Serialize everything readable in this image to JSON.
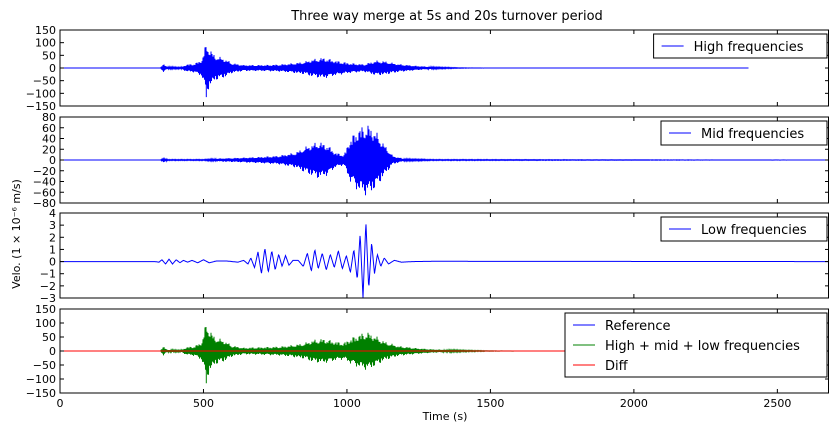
{
  "chart_data": {
    "type": "line",
    "title": "Three way merge at 5s and 20s turnover period",
    "xlabel": "Time (s)",
    "ylabel": "Velo. (1 × 10⁻⁶ m/s)",
    "xlim": [
      0,
      2680
    ],
    "xticks": [
      "0",
      "500",
      "1000",
      "1500",
      "2000",
      "2500"
    ],
    "grid": false,
    "panels": [
      {
        "ylim": [
          -150,
          150
        ],
        "yticks": [
          "150",
          "100",
          "50",
          "0",
          "−50",
          "−100",
          "−150"
        ],
        "legend": "top-right",
        "x_end": 2400,
        "series": [
          {
            "name": "High frequencies",
            "color": "#0000ff",
            "envelope": [
              [
                0,
                0
              ],
              [
                350,
                0
              ],
              [
                360,
                18
              ],
              [
                372,
                5
              ],
              [
                420,
                3
              ],
              [
                440,
                14
              ],
              [
                470,
                18
              ],
              [
                495,
                35
              ],
              [
                510,
                104
              ],
              [
                520,
                80
              ],
              [
                540,
                50
              ],
              [
                570,
                40
              ],
              [
                600,
                20
              ],
              [
                640,
                12
              ],
              [
                700,
                12
              ],
              [
                760,
                14
              ],
              [
                800,
                18
              ],
              [
                850,
                25
              ],
              [
                880,
                35
              ],
              [
                920,
                42
              ],
              [
                960,
                30
              ],
              [
                990,
                24
              ],
              [
                1010,
                20
              ],
              [
                1060,
                15
              ],
              [
                1100,
                30
              ],
              [
                1130,
                28
              ],
              [
                1180,
                16
              ],
              [
                1250,
                8
              ],
              [
                1300,
                4
              ],
              [
                1400,
                1
              ],
              [
                1500,
                0
              ],
              [
                2400,
                0
              ]
            ],
            "troughs": [
              [
                510,
                -115
              ]
            ]
          }
        ]
      },
      {
        "ylim": [
          -80,
          80
        ],
        "yticks": [
          "80",
          "60",
          "40",
          "20",
          "0",
          "−20",
          "−40",
          "−60",
          "−80"
        ],
        "legend": "top-right",
        "series": [
          {
            "name": "Mid frequencies",
            "color": "#0000ff",
            "envelope": [
              [
                0,
                0
              ],
              [
                350,
                0
              ],
              [
                362,
                5
              ],
              [
                375,
                1
              ],
              [
                500,
                1
              ],
              [
                560,
                3
              ],
              [
                620,
                4
              ],
              [
                700,
                6
              ],
              [
                760,
                8
              ],
              [
                820,
                14
              ],
              [
                860,
                26
              ],
              [
                900,
                35
              ],
              [
                930,
                30
              ],
              [
                960,
                14
              ],
              [
                990,
                10
              ],
              [
                1010,
                40
              ],
              [
                1040,
                60
              ],
              [
                1070,
                68
              ],
              [
                1100,
                55
              ],
              [
                1130,
                30
              ],
              [
                1160,
                8
              ],
              [
                1200,
                2
              ],
              [
                1300,
                1
              ],
              [
                2680,
                0
              ]
            ]
          }
        ]
      },
      {
        "ylim": [
          -3,
          4
        ],
        "yticks": [
          "4",
          "3",
          "2",
          "1",
          "0",
          "−1",
          "−2",
          "−3"
        ],
        "legend": "top-right",
        "series": [
          {
            "name": "Low frequencies",
            "color": "#0000ff",
            "wave": [
              [
                0,
                0
              ],
              [
                330,
                0
              ],
              [
                345,
                -0.05
              ],
              [
                355,
                0.15
              ],
              [
                368,
                -0.2
              ],
              [
                380,
                0.2
              ],
              [
                392,
                -0.2
              ],
              [
                405,
                0.15
              ],
              [
                418,
                -0.1
              ],
              [
                430,
                0.1
              ],
              [
                445,
                -0.05
              ],
              [
                460,
                0.1
              ],
              [
                480,
                -0.1
              ],
              [
                500,
                0.15
              ],
              [
                520,
                -0.1
              ],
              [
                545,
                0.05
              ],
              [
                580,
                0.05
              ],
              [
                620,
                -0.05
              ],
              [
                640,
                0.1
              ],
              [
                655,
                -0.2
              ],
              [
                665,
                0.3
              ],
              [
                678,
                -0.5
              ],
              [
                690,
                0.8
              ],
              [
                702,
                -1.0
              ],
              [
                714,
                1.1
              ],
              [
                726,
                -0.9
              ],
              [
                738,
                0.9
              ],
              [
                750,
                -0.7
              ],
              [
                762,
                0.6
              ],
              [
                774,
                -0.4
              ],
              [
                786,
                0.5
              ],
              [
                798,
                -0.3
              ],
              [
                812,
                0.1
              ],
              [
                830,
                0.1
              ],
              [
                848,
                -0.4
              ],
              [
                862,
                0.7
              ],
              [
                876,
                -0.8
              ],
              [
                888,
                1.0
              ],
              [
                900,
                -0.6
              ],
              [
                914,
                0.7
              ],
              [
                928,
                -0.7
              ],
              [
                942,
                0.6
              ],
              [
                956,
                -0.5
              ],
              [
                970,
                0.9
              ],
              [
                984,
                -0.6
              ],
              [
                998,
                0.5
              ],
              [
                1012,
                -0.9
              ],
              [
                1024,
                1.0
              ],
              [
                1036,
                -1.5
              ],
              [
                1046,
                2.3
              ],
              [
                1056,
                -3.0
              ],
              [
                1066,
                3.3
              ],
              [
                1076,
                -2.3
              ],
              [
                1086,
                1.6
              ],
              [
                1096,
                -1.0
              ],
              [
                1106,
                0.6
              ],
              [
                1118,
                -0.4
              ],
              [
                1130,
                0.3
              ],
              [
                1145,
                -0.2
              ],
              [
                1165,
                0.1
              ],
              [
                1190,
                -0.05
              ],
              [
                1230,
                0
              ],
              [
                1300,
                0.02
              ],
              [
                2680,
                0
              ]
            ]
          }
        ]
      },
      {
        "ylim": [
          -150,
          150
        ],
        "yticks": [
          "150",
          "100",
          "50",
          "0",
          "−50",
          "−100",
          "−150"
        ],
        "legend": "top-right",
        "series": [
          {
            "name": "Reference",
            "color": "#0000ff",
            "envelope": [
              [
                0,
                0
              ],
              [
                2680,
                0
              ]
            ]
          },
          {
            "name": "High + mid + low frequencies",
            "color": "#008000",
            "envelope": [
              [
                0,
                0
              ],
              [
                350,
                0
              ],
              [
                360,
                18
              ],
              [
                372,
                5
              ],
              [
                420,
                3
              ],
              [
                440,
                14
              ],
              [
                470,
                18
              ],
              [
                495,
                35
              ],
              [
                510,
                108
              ],
              [
                520,
                80
              ],
              [
                540,
                50
              ],
              [
                570,
                40
              ],
              [
                600,
                20
              ],
              [
                640,
                12
              ],
              [
                700,
                14
              ],
              [
                760,
                16
              ],
              [
                800,
                20
              ],
              [
                850,
                28
              ],
              [
                880,
                40
              ],
              [
                920,
                45
              ],
              [
                960,
                35
              ],
              [
                990,
                30
              ],
              [
                1010,
                45
              ],
              [
                1040,
                60
              ],
              [
                1070,
                70
              ],
              [
                1100,
                55
              ],
              [
                1130,
                35
              ],
              [
                1180,
                18
              ],
              [
                1250,
                10
              ],
              [
                1300,
                6
              ],
              [
                1400,
                3
              ],
              [
                1500,
                1
              ],
              [
                1600,
                0
              ],
              [
                2680,
                0
              ]
            ],
            "troughs": [
              [
                510,
                -115
              ]
            ]
          },
          {
            "name": "Diff",
            "color": "#ff0000",
            "envelope": [
              [
                0,
                0
              ],
              [
                2680,
                0
              ]
            ]
          }
        ]
      }
    ]
  }
}
